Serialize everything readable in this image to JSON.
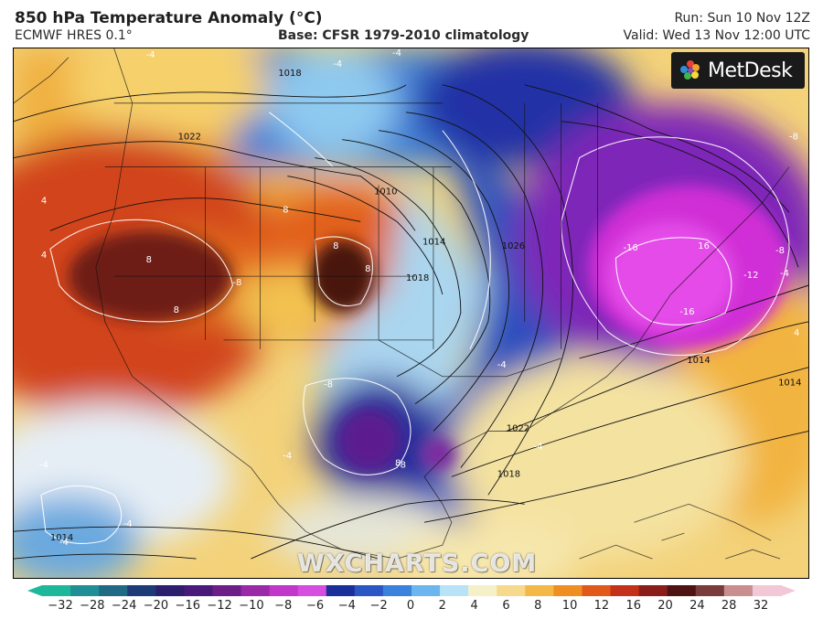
{
  "header": {
    "title": "850 hPa Temperature Anomaly (°C)",
    "model": "ECMWF HRES 0.1°",
    "base": "Base: CFSR 1979-2010 climatology",
    "run": "Run: Sun 10 Nov 12Z",
    "valid": "Valid: Wed 13 Nov 12:00 UTC"
  },
  "brand": {
    "name": "MetDesk"
  },
  "watermark": "WXCHARTS.COM",
  "map": {
    "region": "North America",
    "isobar_labels": [
      {
        "text": "1018"
      },
      {
        "text": "1022"
      },
      {
        "text": "1010"
      },
      {
        "text": "1014"
      },
      {
        "text": "1018"
      },
      {
        "text": "1026"
      },
      {
        "text": "1014"
      },
      {
        "text": "1014"
      },
      {
        "text": "1022"
      },
      {
        "text": "1018"
      },
      {
        "text": "1014"
      }
    ],
    "anomaly_labels": [
      {
        "text": "-4"
      },
      {
        "text": "-4"
      },
      {
        "text": "-4"
      },
      {
        "text": "4"
      },
      {
        "text": "4"
      },
      {
        "text": "8"
      },
      {
        "text": "8"
      },
      {
        "text": "8"
      },
      {
        "text": "-8"
      },
      {
        "text": "8"
      },
      {
        "text": "8"
      },
      {
        "text": "-8"
      },
      {
        "text": "-8"
      },
      {
        "text": "8"
      },
      {
        "text": "-4"
      },
      {
        "text": "-16"
      },
      {
        "text": "16"
      },
      {
        "text": "-16"
      },
      {
        "text": "-12"
      },
      {
        "text": "-8"
      },
      {
        "text": "-4"
      },
      {
        "text": "-8"
      },
      {
        "text": "4"
      },
      {
        "text": "-4"
      },
      {
        "text": "-4"
      },
      {
        "text": "-4"
      },
      {
        "text": "-4"
      },
      {
        "text": "-4"
      }
    ]
  },
  "colorbar": {
    "ticks": [
      "−32",
      "−28",
      "−24",
      "−20",
      "−16",
      "−12",
      "−10",
      "−8",
      "−6",
      "−4",
      "−2",
      "0",
      "2",
      "4",
      "6",
      "8",
      "10",
      "12",
      "16",
      "20",
      "24",
      "28",
      "32"
    ],
    "colors": [
      "#1db89a",
      "#1f8f95",
      "#206a86",
      "#1d3b76",
      "#2d1f6e",
      "#4a1a7a",
      "#6c1f86",
      "#9a2aa8",
      "#c037c9",
      "#d54ee0",
      "#1a2f9a",
      "#2b57c4",
      "#3b82dc",
      "#6bb6ee",
      "#b8e3f7",
      "#f5f0c8",
      "#f6d98a",
      "#f4b847",
      "#ef8f21",
      "#e0591b",
      "#c5301a",
      "#8b1e1a",
      "#4e1414",
      "#7a3b3b",
      "#c98f8f",
      "#f2c7d6"
    ]
  }
}
